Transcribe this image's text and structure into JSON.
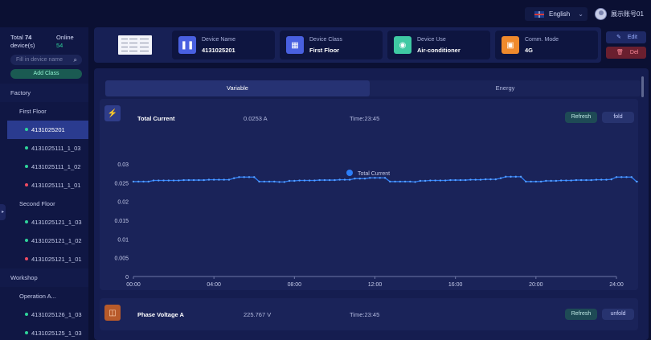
{
  "topbar": {
    "language": "English",
    "username": "展示账号01"
  },
  "sidebar": {
    "total_label": "Total",
    "total_count": "74",
    "total_unit": "device(s)",
    "online_label": "Online",
    "online_count": "54",
    "search_placeholder": "Fill in device name",
    "add_class_label": "Add Class",
    "tree": [
      {
        "label": "Factory",
        "level": 0
      },
      {
        "label": "First Floor",
        "level": 1
      },
      {
        "label": "4131025201",
        "level": 2,
        "status": "online",
        "selected": true
      },
      {
        "label": "4131025111_1_03",
        "level": 2,
        "status": "online"
      },
      {
        "label": "4131025111_1_02",
        "level": 2,
        "status": "online"
      },
      {
        "label": "4131025111_1_01",
        "level": 2,
        "status": "offline"
      },
      {
        "label": "Second Floor",
        "level": 1
      },
      {
        "label": "4131025121_1_03",
        "level": 2,
        "status": "online"
      },
      {
        "label": "4131025121_1_02",
        "level": 2,
        "status": "online"
      },
      {
        "label": "4131025121_1_01",
        "level": 2,
        "status": "offline"
      },
      {
        "label": "Workshop",
        "level": 0
      },
      {
        "label": "Operation A...",
        "level": 1
      },
      {
        "label": "4131025126_1_03",
        "level": 2,
        "status": "online"
      },
      {
        "label": "4131025125_1_03",
        "level": 2,
        "status": "online"
      }
    ]
  },
  "header": {
    "device_name_label": "Device Name",
    "device_name": "4131025201",
    "device_class_label": "Device Class",
    "device_class": "First Floor",
    "device_use_label": "Device Use",
    "device_use": "Air-conditioner",
    "comm_mode_label": "Comm. Mode",
    "comm_mode": "4G",
    "edit_label": "Edit",
    "delete_label": "Del"
  },
  "tabs": {
    "variable": "Variable",
    "energy": "Energy"
  },
  "cards": [
    {
      "title": "Total Current",
      "value": "0.0253 A",
      "time": "Time:23:45",
      "refresh": "Refresh",
      "toggle": "fold"
    },
    {
      "title": "Phase Voltage A",
      "value": "225.767 V",
      "time": "Time:23:45",
      "refresh": "Refresh",
      "toggle": "unfold"
    }
  ],
  "colors": {
    "accent": "#2c7ef8",
    "online": "#2fd39a",
    "offline": "#ee4b62"
  },
  "chart_data": {
    "type": "line",
    "legend": [
      "Total Current"
    ],
    "legend_position": "top-center",
    "grid": false,
    "x_ticks": [
      "00:00",
      "04:00",
      "08:00",
      "12:00",
      "16:00",
      "20:00",
      "24:00"
    ],
    "y_ticks": [
      "0",
      "0.005",
      "0.01",
      "0.015",
      "0.02",
      "0.025",
      "0.03"
    ],
    "ylim": [
      0,
      0.03
    ],
    "xlim_hours": [
      0,
      24
    ],
    "series": [
      {
        "name": "Total Current",
        "step_minutes": 15,
        "values": [
          0.0253,
          0.0253,
          0.0253,
          0.0253,
          0.0256,
          0.0256,
          0.0256,
          0.0256,
          0.0256,
          0.0256,
          0.0257,
          0.0257,
          0.0257,
          0.0257,
          0.0257,
          0.0258,
          0.0258,
          0.0258,
          0.0258,
          0.0258,
          0.0262,
          0.0265,
          0.0265,
          0.0265,
          0.0265,
          0.0253,
          0.0253,
          0.0253,
          0.0253,
          0.0252,
          0.0252,
          0.0255,
          0.0255,
          0.0256,
          0.0256,
          0.0256,
          0.0256,
          0.0257,
          0.0257,
          0.0257,
          0.0257,
          0.0258,
          0.0258,
          0.0258,
          0.0261,
          0.0261,
          0.0261,
          0.0263,
          0.0263,
          0.0263,
          0.0263,
          0.0253,
          0.0253,
          0.0253,
          0.0253,
          0.0253,
          0.0252,
          0.0255,
          0.0255,
          0.0256,
          0.0256,
          0.0256,
          0.0256,
          0.0257,
          0.0257,
          0.0257,
          0.0257,
          0.0258,
          0.0258,
          0.0258,
          0.0259,
          0.0259,
          0.0259,
          0.0262,
          0.0266,
          0.0266,
          0.0266,
          0.0266,
          0.0253,
          0.0253,
          0.0253,
          0.0253,
          0.0255,
          0.0255,
          0.0255,
          0.0256,
          0.0256,
          0.0256,
          0.0257,
          0.0257,
          0.0257,
          0.0257,
          0.0258,
          0.0258,
          0.0258,
          0.0259,
          0.0265,
          0.0265,
          0.0265,
          0.0265,
          0.0253,
          0.0253,
          0.0253,
          0.0253,
          0.0253,
          0.0255,
          0.0255,
          0.0255,
          0.0256,
          0.0256,
          0.0256,
          0.0257,
          0.0257,
          0.0257,
          0.0258,
          0.0258,
          0.0259,
          0.0259,
          0.0259,
          0.0263,
          0.0264,
          0.0264,
          0.0264,
          0.0264,
          0.0264,
          0.0264,
          0.0253,
          0.0253,
          0.0253,
          0.0253,
          0.0253,
          0.0255,
          0.0255,
          0.0255,
          0.0256,
          0.0256,
          0.0256,
          0.0257,
          0.0257,
          0.0257,
          0.0258,
          0.0258,
          0.0259,
          0.0259,
          0.0259,
          0.0262,
          0.0262,
          0.0262,
          0.0262,
          0.0265,
          0.0265,
          0.0265,
          0.0265,
          0.0253
        ]
      }
    ]
  }
}
